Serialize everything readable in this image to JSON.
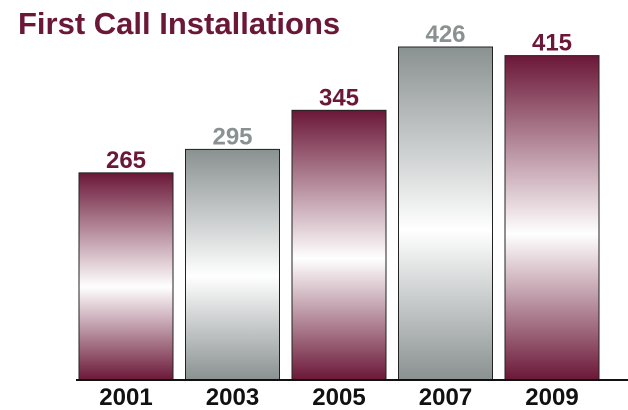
{
  "chart_data": {
    "type": "bar",
    "title": "First Call Installations",
    "xlabel": "",
    "ylabel": "",
    "categories": [
      "2001",
      "2003",
      "2005",
      "2007",
      "2009"
    ],
    "values": [
      265,
      295,
      345,
      426,
      415
    ],
    "ylim": [
      0,
      426
    ],
    "grid": false,
    "legend": "none",
    "bar_styles": [
      "maroon",
      "silver",
      "maroon",
      "silver",
      "maroon"
    ]
  },
  "colors": {
    "maroon": "#6b1737",
    "maroon_light": "#ffffff",
    "silver": "#8a9191",
    "silver_light": "#ffffff",
    "title": "#6b1737",
    "silver_label": "#8a9191",
    "axis": "#111111"
  }
}
